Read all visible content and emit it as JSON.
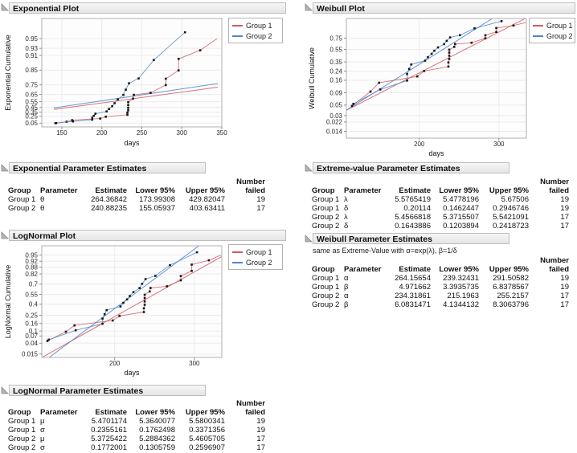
{
  "colors": {
    "group1": "#d3595f",
    "group2": "#4f86c8",
    "marker": "#161616",
    "grid": "#ececec",
    "frame": "#b0b0b0",
    "header_bg": "#ececec",
    "triangle": "#b3b3b3"
  },
  "legend": {
    "items": [
      {
        "label": "Group 1",
        "color": "#d3595f"
      },
      {
        "label": "Group 2",
        "color": "#4f86c8"
      }
    ]
  },
  "chart_data": {
    "type": "line",
    "description": "Parametric survival probability plots with nonparametric cumulative estimates (points) and fitted distribution lines for two groups",
    "shared_series": [
      {
        "name": "Group 1",
        "color": "#d3595f",
        "points": [
          [
            142,
            0.048
          ],
          [
            156,
            0.095
          ],
          [
            163,
            0.143
          ],
          [
            198,
            0.19
          ],
          [
            205,
            0.241
          ],
          [
            232,
            0.29
          ],
          [
            232,
            0.342
          ],
          [
            233,
            0.392
          ],
          [
            233,
            0.443
          ],
          [
            233,
            0.494
          ],
          [
            233,
            0.545
          ],
          [
            239,
            0.595
          ],
          [
            240,
            0.646
          ],
          [
            261,
            0.67
          ],
          [
            280,
            0.748
          ],
          [
            280,
            0.798
          ],
          [
            296,
            0.849
          ],
          [
            296,
            0.899
          ],
          [
            323,
            0.925
          ]
        ],
        "tail": [
          344,
          0.95
        ]
      },
      {
        "name": "Group 2",
        "color": "#4f86c8",
        "points": [
          [
            143,
            0.053
          ],
          [
            164,
            0.105
          ],
          [
            188,
            0.158
          ],
          [
            188,
            0.211
          ],
          [
            190,
            0.263
          ],
          [
            192,
            0.316
          ],
          [
            206,
            0.368
          ],
          [
            209,
            0.421
          ],
          [
            213,
            0.474
          ],
          [
            216,
            0.526
          ],
          [
            220,
            0.585
          ],
          [
            227,
            0.645
          ],
          [
            230,
            0.704
          ],
          [
            234,
            0.763
          ],
          [
            246,
            0.8
          ],
          [
            265,
            0.895
          ],
          [
            304,
            0.96
          ]
        ],
        "tail": null
      }
    ],
    "charts": [
      {
        "id": "exponential",
        "title": "Exponential Plot",
        "xlabel": "days",
        "ylabel": "Exponential Cumulative",
        "x_scale": "linear",
        "y_scale": "exponential",
        "x_range": [
          125,
          350
        ],
        "x_ticks": [
          150,
          200,
          250,
          300,
          350
        ],
        "y_ticks": [
          0.05,
          0.25,
          0.35,
          0.45,
          0.55,
          0.65,
          0.75,
          0.85,
          0.91,
          0.93,
          0.95
        ],
        "y_tr_range": [
          -0.08,
          3.7
        ],
        "fit_x_range": [
          140,
          345
        ],
        "fits": [
          {
            "series": 0,
            "type": "exponential",
            "theta": 264.36842
          },
          {
            "series": 1,
            "type": "exponential",
            "theta": 240.88235
          }
        ]
      },
      {
        "id": "weibull",
        "title": "Weibull Plot",
        "xlabel": "days",
        "ylabel": "Weibull Cumulative",
        "x_scale": "log",
        "y_scale": "weibull",
        "x_range": [
          138,
          345
        ],
        "x_ticks": [
          200,
          300
        ],
        "y_ticks": [
          0.014,
          0.022,
          0.03,
          0.05,
          0.09,
          0.16,
          0.24,
          0.35,
          0.55,
          0.75
        ],
        "y_tr_range": [
          -4.6,
          1.3
        ],
        "fit_x_range": [
          138,
          345
        ],
        "fits": [
          {
            "series": 0,
            "type": "weibull",
            "alpha": 264.15654,
            "beta": 4.971662
          },
          {
            "series": 1,
            "type": "weibull",
            "alpha": 234.31861,
            "beta": 6.0831471
          }
        ]
      },
      {
        "id": "lognormal",
        "title": "LogNormal Plot",
        "xlabel": "days",
        "ylabel": "LogNormal Cumulative",
        "x_scale": "log",
        "y_scale": "lognormal",
        "x_range": [
          138,
          345
        ],
        "x_ticks": [
          200,
          300
        ],
        "y_ticks": [
          0.015,
          0.04,
          0.07,
          0.1,
          0.16,
          0.25,
          0.4,
          0.55,
          0.7,
          0.82,
          0.88,
          0.92,
          0.95
        ],
        "y_tr_range": [
          -2.3,
          2.0
        ],
        "fit_x_range": [
          138,
          345
        ],
        "fits": [
          {
            "series": 0,
            "type": "lognormal",
            "mu": 5.4701174,
            "sigma": 0.2355161
          },
          {
            "series": 1,
            "type": "lognormal",
            "mu": 5.3725422,
            "sigma": 0.1772001
          }
        ]
      }
    ]
  },
  "tables": [
    {
      "title": "Exponential Parameter Estimates",
      "columns": [
        "Group",
        "Parameter",
        "Estimate",
        "Lower 95%",
        "Upper 95%",
        "Number failed"
      ],
      "rows": [
        [
          "Group 1",
          "θ",
          "264.36842",
          "173.99308",
          "429.82047",
          "19"
        ],
        [
          "Group 2",
          "θ",
          "240.88235",
          "155.05937",
          "403.63411",
          "17"
        ]
      ]
    },
    {
      "title": "LogNormal Parameter Estimates",
      "columns": [
        "Group",
        "Parameter",
        "Estimate",
        "Lower 95%",
        "Upper 95%",
        "Number failed"
      ],
      "rows": [
        [
          "Group 1",
          "μ",
          "5.4701174",
          "5.3640077",
          "5.5800341",
          "19"
        ],
        [
          "Group 1",
          "σ",
          "0.2355161",
          "0.1762498",
          "0.3371356",
          "19"
        ],
        [
          "Group 2",
          "μ",
          "5.3725422",
          "5.2884362",
          "5.4605705",
          "17"
        ],
        [
          "Group 2",
          "σ",
          "0.1772001",
          "0.1305759",
          "0.2596907",
          "17"
        ]
      ]
    },
    {
      "title": "Extreme-value Parameter Estimates",
      "columns": [
        "Group",
        "Parameter",
        "Estimate",
        "Lower 95%",
        "Upper 95%",
        "Number failed"
      ],
      "rows": [
        [
          "Group 1",
          "λ",
          "5.5765419",
          "5.4778196",
          "5.67506",
          "19"
        ],
        [
          "Group 1",
          "δ",
          "0.20114",
          "0.1462447",
          "0.2946746",
          "19"
        ],
        [
          "Group 2",
          "λ",
          "5.4566818",
          "5.3715507",
          "5.5421091",
          "17"
        ],
        [
          "Group 2",
          "δ",
          "0.1643886",
          "0.1203894",
          "0.2418723",
          "17"
        ]
      ]
    },
    {
      "title": "Weibull Parameter Estimates",
      "note": "same as Extreme-Value with α=exp(λ), β=1/δ",
      "columns": [
        "Group",
        "Parameter",
        "Estimate",
        "Lower 95%",
        "Upper 95%",
        "Number failed"
      ],
      "rows": [
        [
          "Group 1",
          "α",
          "264.15654",
          "239.32431",
          "291.50582",
          "19"
        ],
        [
          "Group 1",
          "β",
          "4.971662",
          "3.3935735",
          "6.8378567",
          "19"
        ],
        [
          "Group 2",
          "α",
          "234.31861",
          "215.1963",
          "255.2157",
          "17"
        ],
        [
          "Group 2",
          "β",
          "6.0831471",
          "4.1344132",
          "8.3063796",
          "17"
        ]
      ]
    }
  ]
}
